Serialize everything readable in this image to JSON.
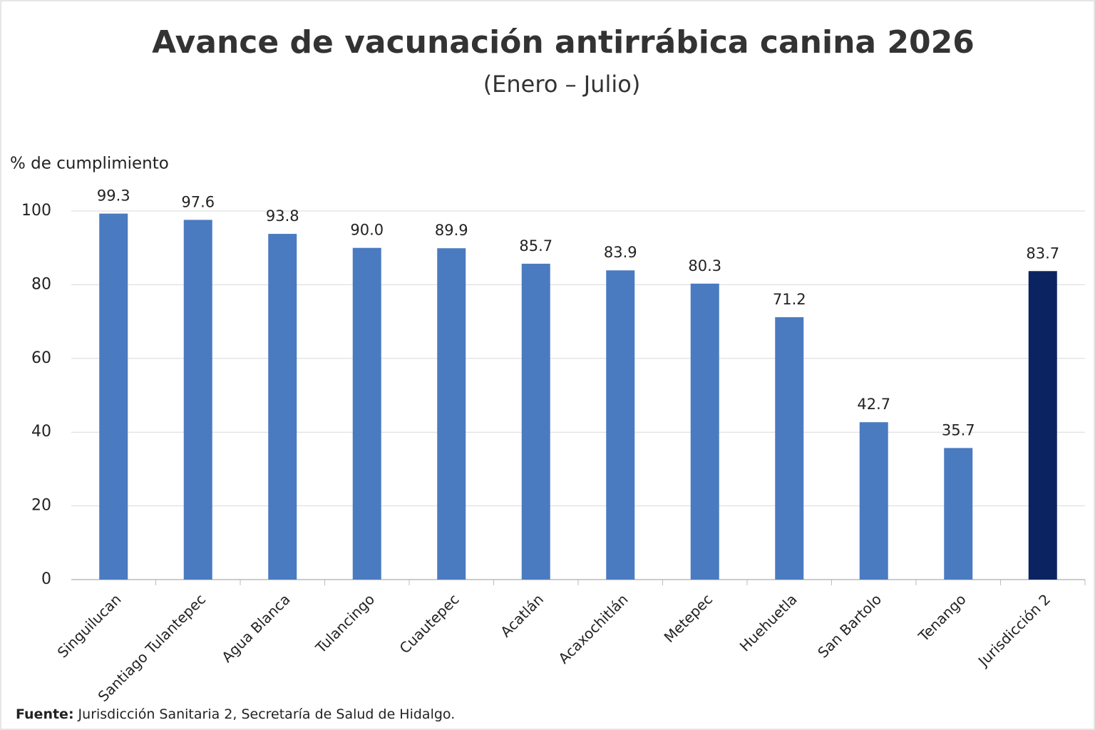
{
  "chart_data": {
    "type": "bar",
    "title": "Avance de vacunación antirrábica canina 2026",
    "subtitle": "(Enero – Julio)",
    "y_label": "% de cumplimiento",
    "categories": [
      "Singuilucan",
      "Santiago Tulantepec",
      "Agua Blanca",
      "Tulancingo",
      "Cuautepec",
      "Acatlán",
      "Acaxochitlán",
      "Metepec",
      "Huehuetla",
      "San Bartolo",
      "Tenango",
      "Jurisdicción 2"
    ],
    "values": [
      99.3,
      97.6,
      93.8,
      90.0,
      89.9,
      85.7,
      83.9,
      80.3,
      71.2,
      42.7,
      35.7,
      83.7
    ],
    "value_labels": [
      "99.3",
      "97.6",
      "93.8",
      "90.0",
      "89.9",
      "85.7",
      "83.9",
      "80.3",
      "71.2",
      "42.7",
      "35.7",
      "83.7"
    ],
    "colors": [
      "#4a7bc0",
      "#4a7bc0",
      "#4a7bc0",
      "#4a7bc0",
      "#4a7bc0",
      "#4a7bc0",
      "#4a7bc0",
      "#4a7bc0",
      "#4a7bc0",
      "#4a7bc0",
      "#4a7bc0",
      "#0b2461"
    ],
    "ylim": [
      0,
      100
    ],
    "yticks": [
      0,
      20,
      40,
      60,
      80,
      100
    ],
    "grid": true,
    "source_label": "Fuente:",
    "source": "Jurisdicción Sanitaria 2, Secretaría de Salud de Hidalgo."
  }
}
